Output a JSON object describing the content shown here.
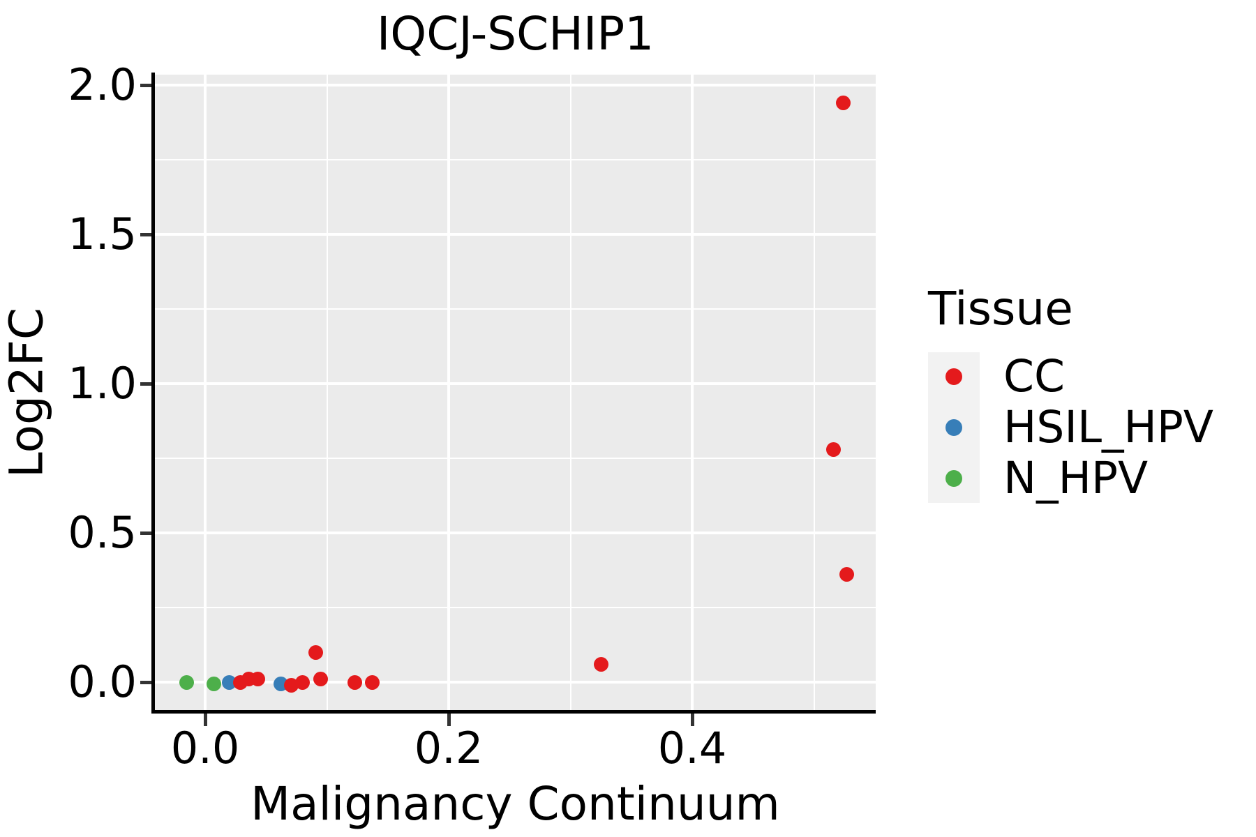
{
  "title": "IQCJ-SCHIP1",
  "axes": {
    "x": {
      "label": "Malignancy Continuum",
      "ticks": [
        {
          "value": 0.0,
          "label": "0.0"
        },
        {
          "value": 0.2,
          "label": "0.2"
        },
        {
          "value": 0.4,
          "label": "0.4"
        }
      ],
      "minor_gridlines": [
        0.1,
        0.3,
        0.5
      ]
    },
    "y": {
      "label": "Log2FC",
      "ticks": [
        {
          "value": 0.0,
          "label": "0.0"
        },
        {
          "value": 0.5,
          "label": "0.5"
        },
        {
          "value": 1.0,
          "label": "1.0"
        },
        {
          "value": 1.5,
          "label": "1.5"
        },
        {
          "value": 2.0,
          "label": "2.0"
        }
      ],
      "minor_gridlines": [
        0.25,
        0.75,
        1.25,
        1.75
      ]
    }
  },
  "legend": {
    "title": "Tissue",
    "entries": [
      {
        "label": "CC",
        "color": "#E41A1C"
      },
      {
        "label": "HSIL_HPV",
        "color": "#377EB8"
      },
      {
        "label": "N_HPV",
        "color": "#4DAF4A"
      }
    ]
  },
  "colors": {
    "panel_background": "#EBEBEB",
    "gridline": "#FFFFFF",
    "legend_key_background": "#F2F2F2",
    "axis_line": "#000000",
    "tick_mark": "#333333",
    "text": "#000000"
  },
  "chart_data": {
    "type": "scatter",
    "title": "IQCJ-SCHIP1",
    "xlabel": "Malignancy Continuum",
    "ylabel": "Log2FC",
    "xlim": [
      -0.04,
      0.55
    ],
    "ylim": [
      -0.1,
      2.04
    ],
    "grid": "major+minor",
    "legend_position": "right",
    "series": [
      {
        "name": "CC",
        "color": "#E41A1C",
        "points": [
          [
            0.029,
            0.0
          ],
          [
            0.036,
            0.01
          ],
          [
            0.043,
            0.01
          ],
          [
            0.071,
            -0.01
          ],
          [
            0.08,
            0.0
          ],
          [
            0.091,
            0.1
          ],
          [
            0.095,
            0.01
          ],
          [
            0.123,
            0.0
          ],
          [
            0.137,
            0.0
          ],
          [
            0.325,
            0.06
          ],
          [
            0.516,
            0.78
          ],
          [
            0.527,
            0.36
          ],
          [
            0.524,
            1.94
          ]
        ]
      },
      {
        "name": "HSIL_HPV",
        "color": "#377EB8",
        "points": [
          [
            0.02,
            0.0
          ],
          [
            0.062,
            -0.005
          ]
        ]
      },
      {
        "name": "N_HPV",
        "color": "#4DAF4A",
        "points": [
          [
            -0.015,
            0.0
          ],
          [
            0.007,
            -0.005
          ]
        ]
      }
    ]
  }
}
